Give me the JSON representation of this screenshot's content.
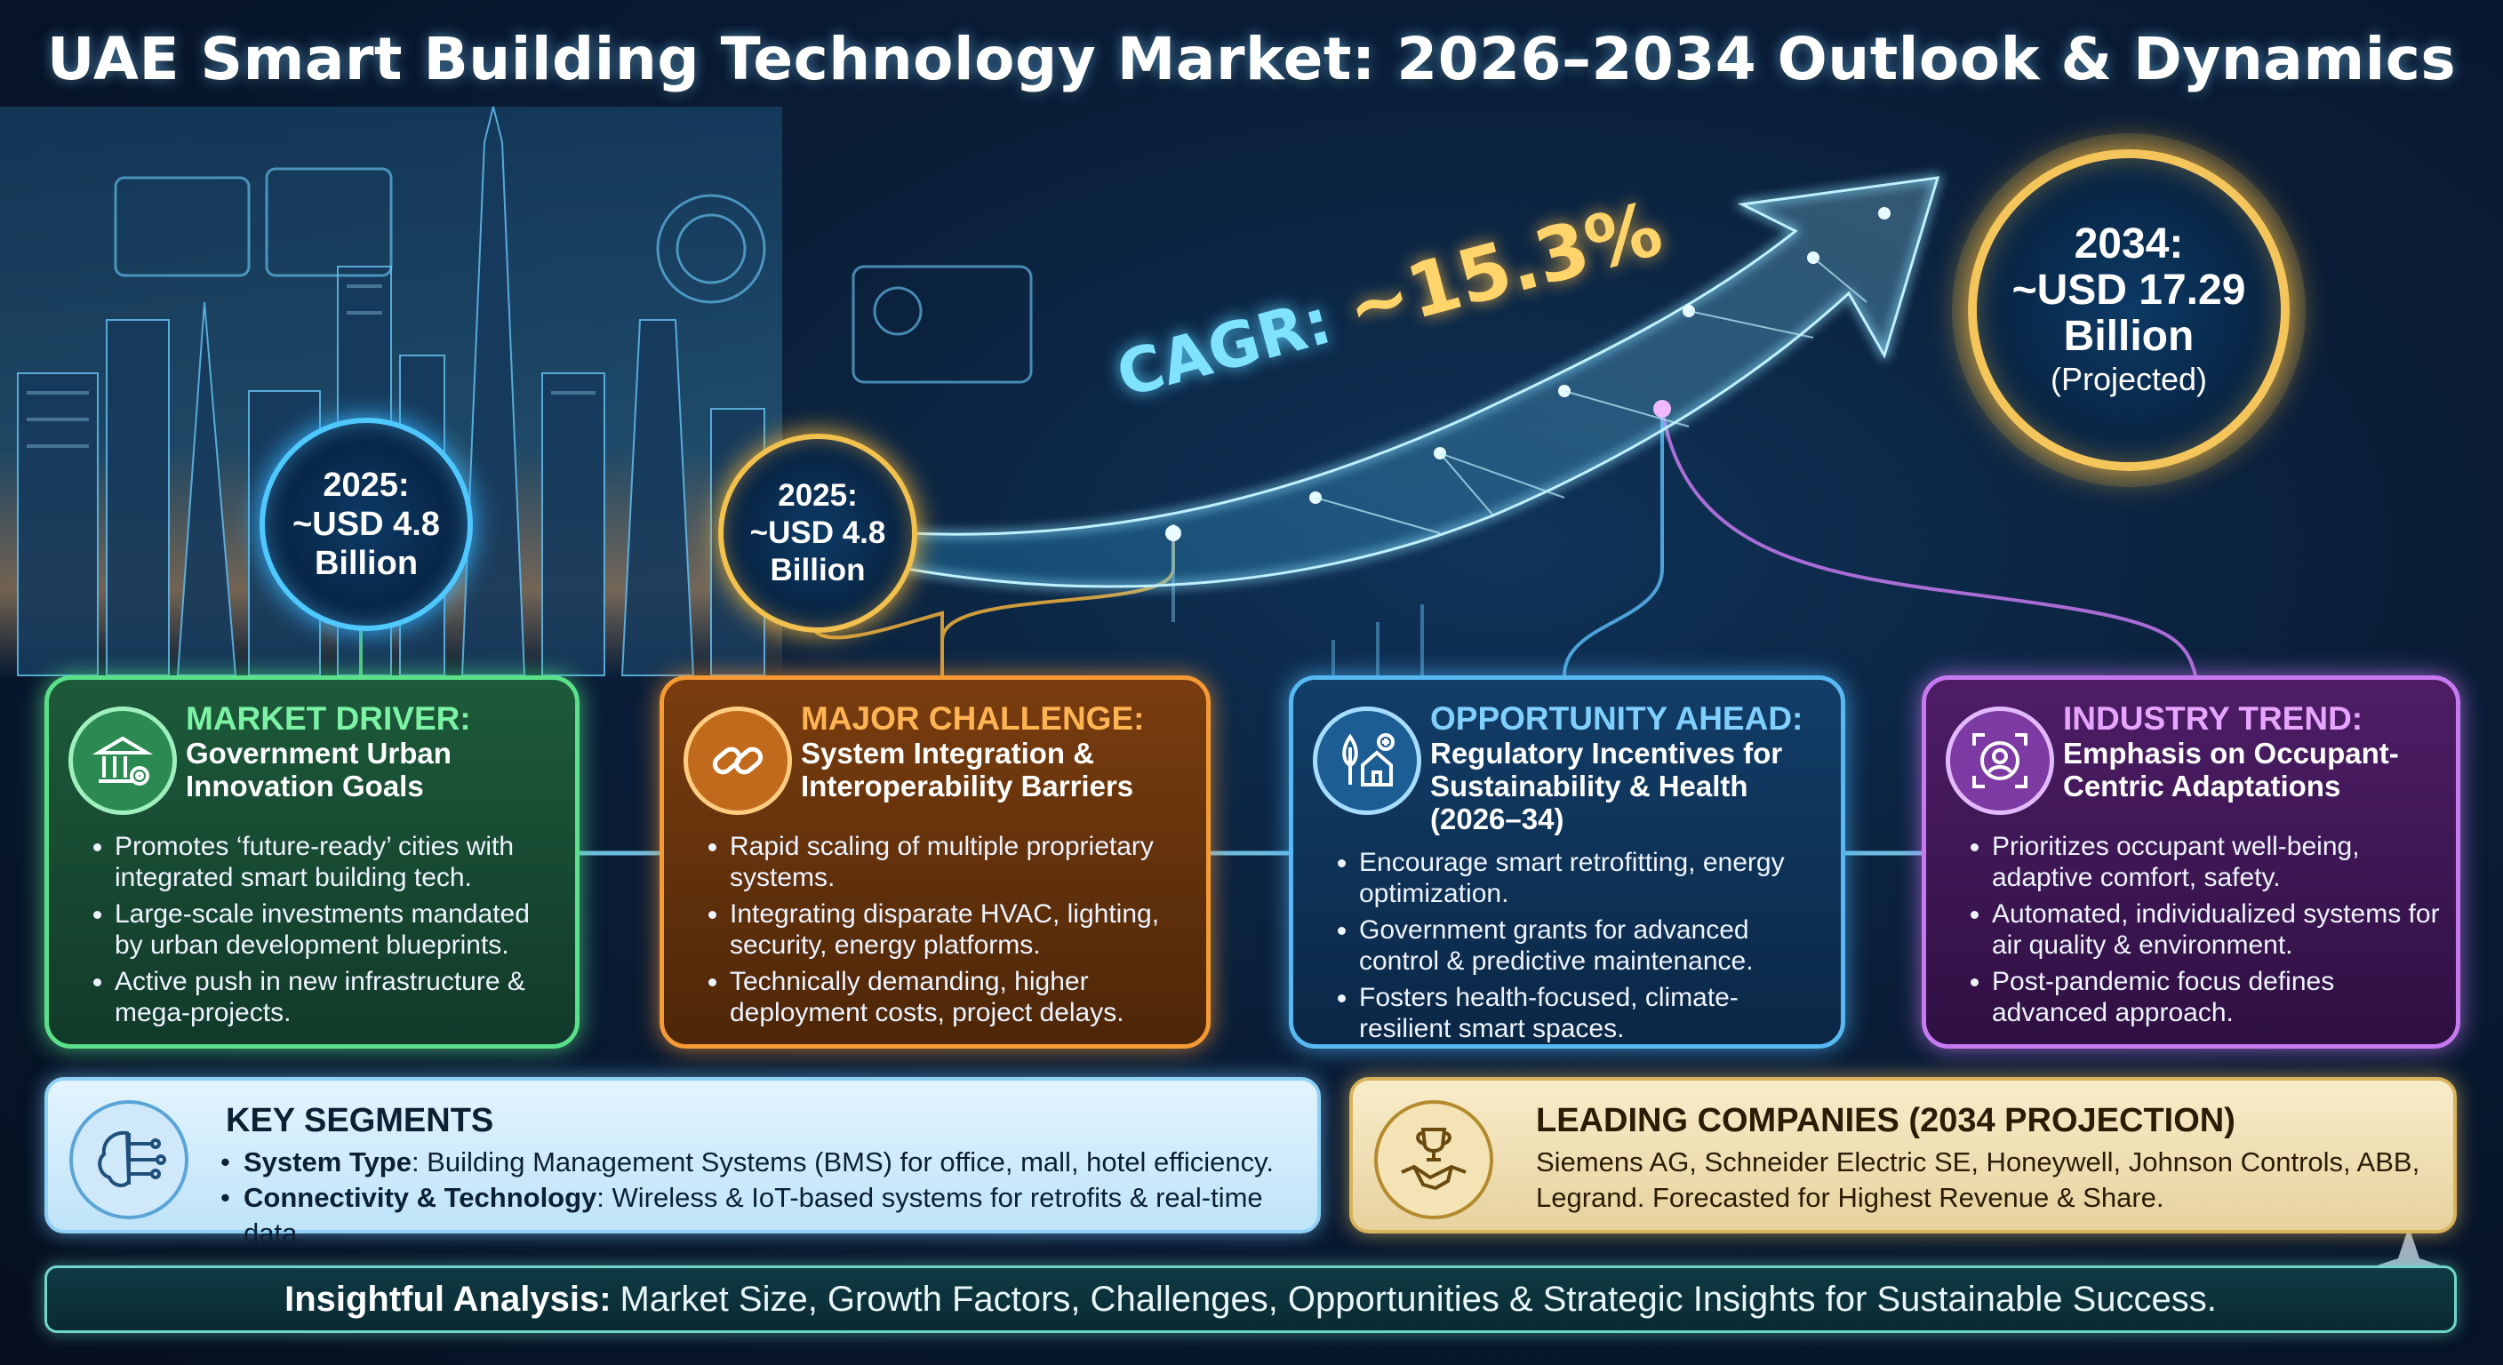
{
  "title": "UAE Smart Building Technology Market: 2026–2034 Outlook & Dynamics",
  "cagr": {
    "label": "CAGR:",
    "value": "~15.3%"
  },
  "bubbles": {
    "left": {
      "year": "2025:",
      "value": "~USD 4.8",
      "unit": "Billion"
    },
    "middle": {
      "year": "2025:",
      "value": "~USD 4.8",
      "unit": "Billion"
    },
    "right": {
      "year": "2034:",
      "value": "~USD 17.29",
      "unit": "Billion",
      "note": "(Projected)"
    }
  },
  "cards": {
    "driver": {
      "heading": "MARKET DRIVER:",
      "subheading": "Government Urban Innovation Goals",
      "icon": "government-building-gear-icon",
      "bullets": [
        "Promotes ‘future-ready’ cities with integrated smart building tech.",
        "Large-scale investments mandated by urban development blueprints.",
        "Active push in new infrastructure & mega-projects."
      ]
    },
    "challenge": {
      "heading": "MAJOR CHALLENGE:",
      "subheading": "System Integration & Interoperability Barriers",
      "icon": "chain-link-icon",
      "bullets": [
        "Rapid scaling of multiple proprietary systems.",
        "Integrating disparate HVAC, lighting, security, energy platforms.",
        "Technically demanding, higher deployment costs, project delays."
      ]
    },
    "opportunity": {
      "heading": "OPPORTUNITY AHEAD:",
      "subheading": "Regulatory Incentives for Sustainability & Health (2026–34)",
      "icon": "eco-house-icon",
      "bullets": [
        "Encourage smart retrofitting, energy optimization.",
        "Government grants for advanced control & predictive maintenance.",
        "Fosters health-focused, climate-resilient smart spaces."
      ]
    },
    "trend": {
      "heading": "INDUSTRY TREND:",
      "subheading": "Emphasis on Occupant-Centric Adaptations",
      "icon": "occupant-focus-icon",
      "bullets": [
        "Prioritizes occupant well-being, adaptive comfort, safety.",
        "Automated, individualized systems for air quality & environment.",
        "Post-pandemic focus defines advanced approach."
      ]
    }
  },
  "segments": {
    "title": "KEY SEGMENTS",
    "icon": "circuit-brain-icon",
    "items": [
      {
        "label": "System Type",
        "text": ": Building Management Systems (BMS) for office, mall, hotel efficiency."
      },
      {
        "label": "Connectivity & Technology",
        "text": ": Wireless & IoT-based systems for retrofits & real-time data."
      }
    ]
  },
  "companies": {
    "title": "LEADING COMPANIES (2034 PROJECTION)",
    "icon": "trophy-handshake-icon",
    "line1": "Siemens AG, Schneider Electric SE, Honeywell, Johnson Controls, ABB,",
    "line2": "Legrand. Forecasted for Highest Revenue & Share."
  },
  "footer": {
    "lead": "Insightful Analysis:",
    "text": "Market Size, Growth Factors, Challenges, Opportunities & Strategic Insights for Sustainable Success."
  }
}
